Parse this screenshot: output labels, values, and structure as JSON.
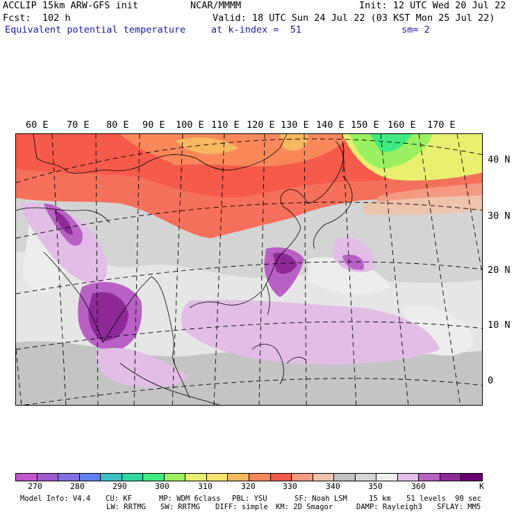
{
  "header": {
    "model": "ACCLIP 15km ARW-GFS init",
    "org": "NCAR/MMMM",
    "init": "Init: 12 UTC Wed 20 Jul 22",
    "fcst": "Fcst:  102 h",
    "valid": "Valid: 18 UTC Sun 24 Jul 22 (03 KST Mon 25 Jul 22)",
    "field": "Equivalent potential temperature",
    "level": "at k-index =  51",
    "smooth": "sm= 2"
  },
  "map": {
    "lon_labels": [
      "60 E",
      "70 E",
      "80 E",
      "90 E",
      "100 E",
      "110 E",
      "120 E",
      "130 E",
      "140 E",
      "150 E",
      "160 E",
      "170 E"
    ],
    "lat_labels": [
      "40 N",
      "30 N",
      "20 N",
      "10 N",
      "0"
    ]
  },
  "colorbar": {
    "colors": [
      "#c055cc",
      "#a05bd0",
      "#8070e0",
      "#5f80ee",
      "#3cc2c2",
      "#2fd6a0",
      "#40ea80",
      "#9af060",
      "#e8f070",
      "#fae270",
      "#f8b860",
      "#f8885a",
      "#f55a4a",
      "#f59a80",
      "#eec4ac",
      "#c2c2c2",
      "#d6d6d6",
      "#eeeeee",
      "#e2bee6",
      "#b860c4",
      "#8e2a98",
      "#6b0070"
    ],
    "labels": [
      "270",
      "280",
      "290",
      "300",
      "310",
      "320",
      "330",
      "340",
      "350",
      "360"
    ],
    "unit": "K"
  },
  "footer": {
    "line1": [
      "Model Info: V4.4",
      "CU: KF",
      "MP: WDM 6class",
      "PBL: YSU",
      "SF: Noah LSM",
      "15 km",
      "51 levels",
      "90 sec"
    ],
    "line2": [
      "LW: RRTMG",
      "SW: RRTMG",
      "DIFF: simple",
      "KM: 2D Smagor",
      "DAMP: Rayleigh3",
      "SFLAY: MM5"
    ]
  }
}
